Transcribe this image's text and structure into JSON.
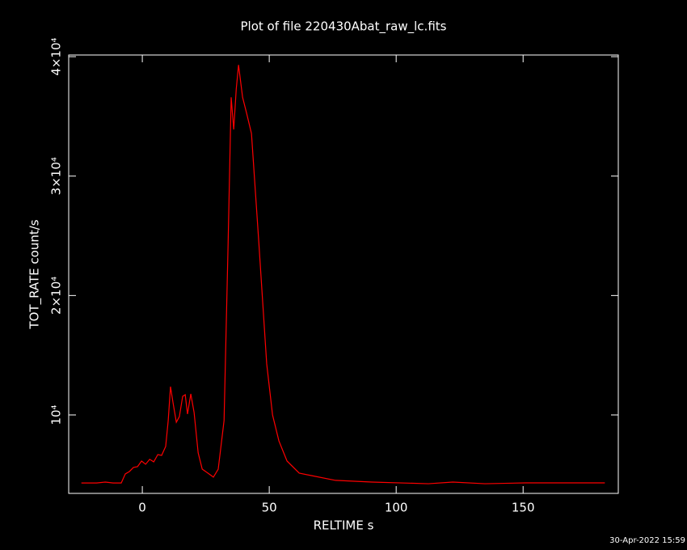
{
  "chart_data": {
    "type": "line",
    "title": "Plot of file 220430Abat_raw_lc.fits",
    "x_label": "RELTIME  s",
    "y_label": "TOT_RATE  count/s",
    "timestamp": "30-Apr-2022 15:59",
    "x": [
      -24,
      -18,
      -14.6,
      -11.5,
      -8.3,
      -6.7,
      -5.1,
      -3.5,
      -1.9,
      -0.3,
      1.3,
      2.9,
      4.5,
      6.1,
      7.6,
      9.2,
      10.2,
      11.1,
      12.1,
      13.4,
      14.6,
      15.9,
      16.9,
      17.8,
      19.1,
      20.4,
      22,
      23.6,
      25.8,
      28,
      29.9,
      32.2,
      33.8,
      35,
      36,
      37,
      37.9,
      39.5,
      41.1,
      43,
      45.9,
      49,
      51.3,
      53.8,
      57,
      61.8,
      66.6,
      76.1,
      90.4,
      112.7,
      122.3,
      135,
      151,
      166.9,
      182.2
    ],
    "series": [
      {
        "color": "#ff0000",
        "values": [
          4300,
          4300,
          4380,
          4300,
          4300,
          5060,
          5260,
          5600,
          5670,
          6140,
          5870,
          6280,
          6070,
          6680,
          6610,
          7360,
          9530,
          12370,
          11020,
          9390,
          9860,
          11560,
          11690,
          10070,
          11760,
          10200,
          6820,
          5460,
          5130,
          4790,
          5460,
          9530,
          24420,
          36600,
          33900,
          37280,
          39310,
          36600,
          35250,
          33560,
          24420,
          14270,
          10000,
          7830,
          6140,
          5130,
          4920,
          4520,
          4380,
          4240,
          4380,
          4240,
          4310,
          4310,
          4310
        ]
      }
    ],
    "xlim": [
      -29,
      187.5
    ],
    "ylim": [
      3430,
      40140
    ],
    "xticks": [
      0,
      50,
      100,
      150
    ],
    "yticks": [
      {
        "value": 10000,
        "label": "10⁴"
      },
      {
        "value": 20000,
        "label": "2×10⁴"
      },
      {
        "value": 30000,
        "label": "3×10⁴"
      },
      {
        "value": 40000,
        "label": "4×10⁴"
      }
    ],
    "background": "#000000",
    "axis_color": "#ffffff"
  }
}
